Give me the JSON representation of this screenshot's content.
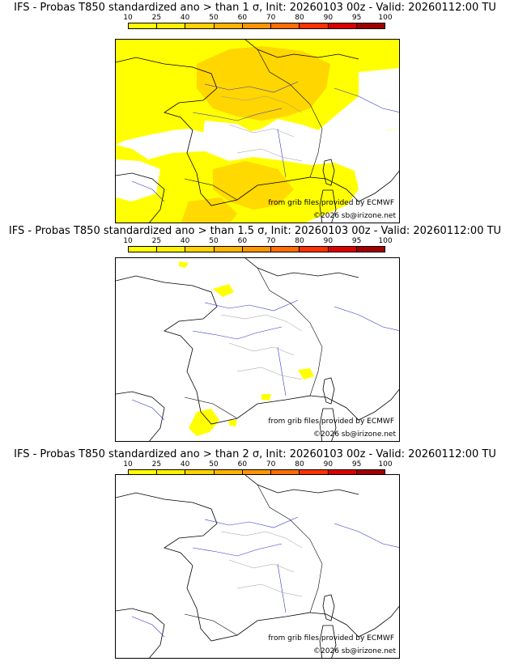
{
  "legend": {
    "ticks": [
      "10",
      "25",
      "40",
      "50",
      "60",
      "70",
      "80",
      "90",
      "95",
      "100"
    ],
    "colors": [
      "#ffff00",
      "#fff000",
      "#ffd200",
      "#ffb400",
      "#ff9600",
      "#ff6e00",
      "#ff3200",
      "#dc0000",
      "#a00000",
      "#6e0000"
    ]
  },
  "panels": [
    {
      "title": "IFS - Probas T850  standardized ano > than 1 σ, Init: 20260103 00z - Valid: 20260112:00 TU",
      "credit": "from grib files provided by ECMWF",
      "copyright": "©2026 sb@irizone.net",
      "anomaly": "1 σ"
    },
    {
      "title": "IFS - Probas T850  standardized ano > than 1.5 σ, Init: 20260103 00z - Valid: 20260112:00 TU",
      "credit": "from grib files provided by ECMWF",
      "copyright": "©2026 sb@irizone.net",
      "anomaly": "1.5 σ"
    },
    {
      "title": "IFS - Probas T850  standardized ano > than 2 σ, Init: 20260103 00z - Valid: 20260112:00 TU",
      "credit": "from grib files provided by ECMWF",
      "copyright": "©2026 sb@irizone.net",
      "anomaly": "2 σ"
    }
  ]
}
